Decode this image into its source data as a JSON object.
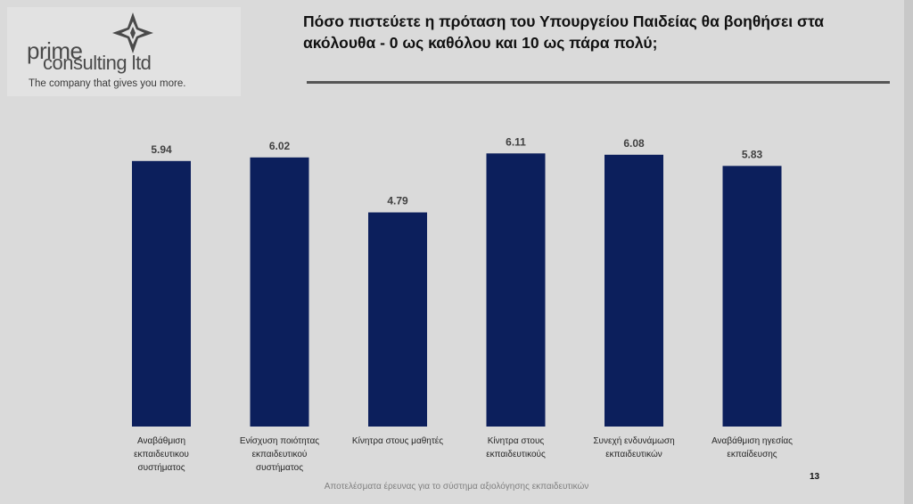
{
  "logo": {
    "brand_top": "prime",
    "brand_bottom": "consulting ltd",
    "tagline": "The company that gives you more.",
    "mark_icon": "star-knot-icon"
  },
  "title": "Πόσο πιστεύετε η πρόταση του Υπουργείου Παιδείας θα βοηθήσει στα\nακόλουθα - 0 ως καθόλου και 10 ως πάρα πολύ;",
  "footer": "Αποτελέσματα έρευνας για το σύστημα αξιολόγησης εκπαιδευτικών",
  "page_number": "13",
  "colors": {
    "bar": "#0c1f5c",
    "background": "#dadada"
  },
  "chart_data": {
    "type": "bar",
    "categories": [
      "Αναβάθμιση εκπαιδευτικου συστήματος",
      "Ενίσχυση ποιότητας εκπαιδευτικού συστήματος",
      "Κίνητρα στους μαθητές",
      "Κίνητρα στους εκπαιδευτικούς",
      "Συνεχή ενδυνάμωση εκπαιδευτικών",
      "Αναβάθμιση ηγεσίας εκπαίδευσης"
    ],
    "category_lines": [
      [
        "Αναβάθμιση",
        "εκπαιδευτικου",
        "συστήματος"
      ],
      [
        "Ενίσχυση ποιότητας",
        "εκπαιδευτικού",
        "συστήματος"
      ],
      [
        "Κίνητρα στους μαθητές"
      ],
      [
        "Κίνητρα στους",
        "εκπαιδευτικούς"
      ],
      [
        "Συνεχή ενδυνάμωση",
        "εκπαιδευτικών"
      ],
      [
        "Αναβάθμιση ηγεσίας",
        "εκπαίδευσης"
      ]
    ],
    "values": [
      5.94,
      6.02,
      4.79,
      6.11,
      6.08,
      5.83
    ],
    "data_labels": [
      "5.94",
      "6.02",
      "4.79",
      "6.11",
      "6.08",
      "5.83"
    ],
    "ylim": [
      0,
      10
    ],
    "grid": false,
    "legend": "none"
  }
}
